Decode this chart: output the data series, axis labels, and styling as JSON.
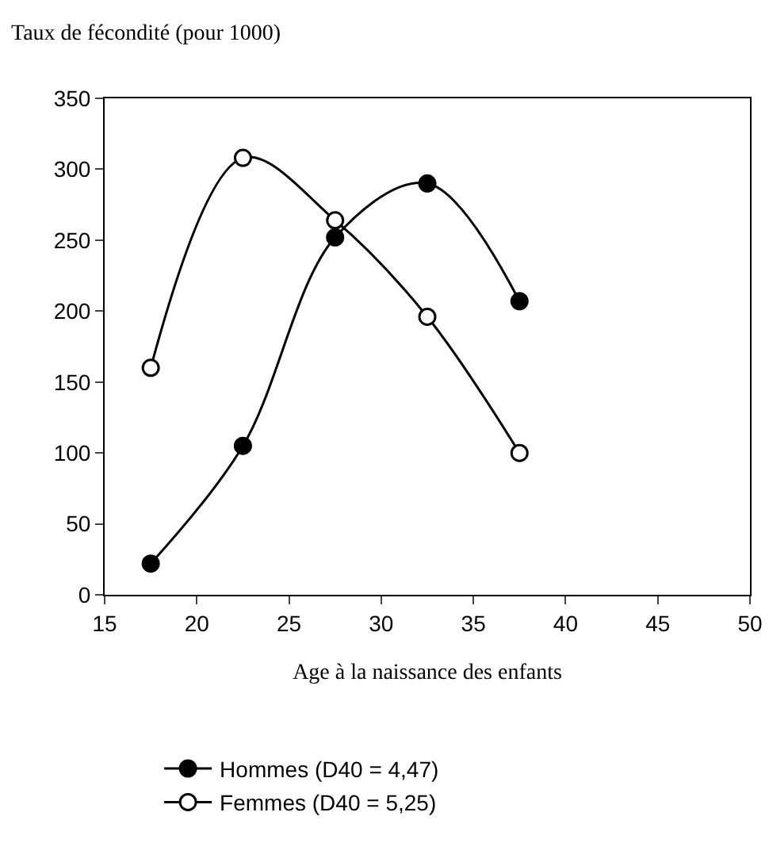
{
  "chart_data": {
    "type": "line",
    "ylabel": "Taux de fécondité (pour 1000)",
    "xlabel": "Age à la naissance des enfants",
    "x": [
      17.5,
      22.5,
      27.5,
      32.5,
      37.5
    ],
    "series": [
      {
        "name": "Hommes (D40 = 4,47)",
        "color": "#000000",
        "values": [
          22,
          105,
          252,
          290,
          207
        ]
      },
      {
        "name": "Femmes (D40 = 5,25)",
        "color": "#000000",
        "values": [
          160,
          308,
          264,
          196,
          100
        ]
      }
    ],
    "xlim": [
      15,
      50
    ],
    "xticks": [
      15,
      20,
      25,
      30,
      35,
      40,
      45,
      50
    ],
    "ylim": [
      0,
      350
    ],
    "yticks": [
      0,
      50,
      100,
      150,
      200,
      250,
      300,
      350
    ],
    "grid": false,
    "legend": "bottom",
    "marker": "circle",
    "line_style": "solid"
  }
}
